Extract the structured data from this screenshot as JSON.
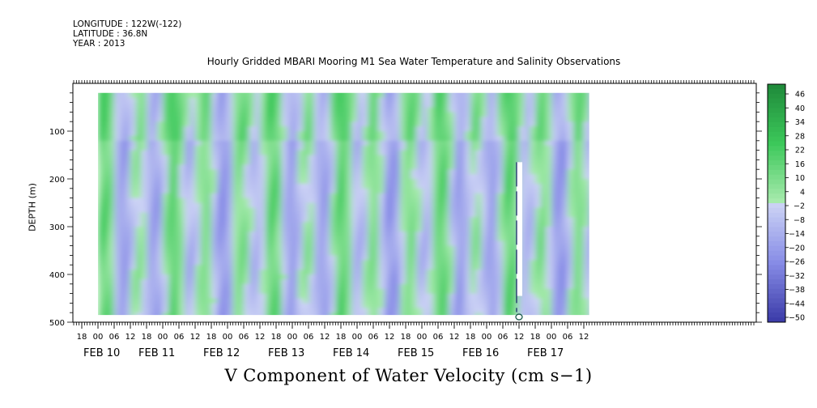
{
  "header": {
    "longitude": "LONGITUDE : 122W(-122)",
    "latitude": "LATITUDE : 36.8N",
    "year": "YEAR : 2013",
    "title": "Hourly Gridded MBARI Mooring M1 Sea Water Temperature and Salinity Observations"
  },
  "chart_data": {
    "type": "heatmap",
    "title": "Hourly Gridded MBARI Mooring M1 Sea Water Temperature and Salinity Observations",
    "variable": "V Component of Water Velocity (cm s-1)",
    "xlabel": "",
    "ylabel": "DEPTH (m)",
    "y_reversed": true,
    "ylim": [
      500,
      0
    ],
    "y_ticks": [
      100,
      200,
      300,
      400,
      500
    ],
    "x_hour_ticks": [
      "18",
      "00",
      "06",
      "12",
      "18",
      "00",
      "06",
      "12",
      "18",
      "00",
      "06",
      "12",
      "18",
      "00",
      "06",
      "12",
      "18",
      "00",
      "06",
      "12",
      "18",
      "00",
      "06",
      "12",
      "18",
      "00",
      "06",
      "12",
      "18",
      "00",
      "06",
      "12"
    ],
    "x_day_labels": [
      "FEB 10",
      "FEB 11",
      "FEB 12",
      "FEB 13",
      "FEB 14",
      "FEB 15",
      "FEB 16",
      "FEB 17"
    ],
    "colorbar_labels": [
      "46",
      "40",
      "34",
      "28",
      "22",
      "16",
      "10",
      "4",
      "-2",
      "-8",
      "-14",
      "-20",
      "-26",
      "-32",
      "-38",
      "-44",
      "-50"
    ],
    "colorbar_range": [
      -50,
      50
    ],
    "colorscale": {
      "negative": "#3a3aa8",
      "zero": "#ffffff",
      "positive": "#1f8a3a"
    },
    "z_range_dominant": [
      -24,
      24
    ],
    "pattern": "alternating vertical bands of positive (green) and negative (blue) northward velocity throughout the water column",
    "data_extent": {
      "x_start": "FEB 10 00",
      "x_end": "FEB 17 14",
      "depth_top": 20,
      "depth_bottom": 485
    },
    "gap": {
      "time": "FEB 16 18",
      "depth_from": 165,
      "depth_to": 445
    }
  },
  "bottom_title": "V Component of Water Velocity (cm s−1)"
}
